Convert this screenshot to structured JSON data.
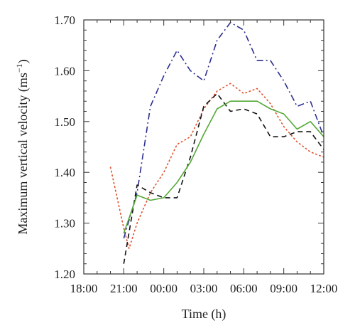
{
  "chart_data": {
    "type": "line",
    "xlabel": "Time (h)",
    "ylabel_text": "Maximum vertical velocity (ms",
    "ylabel_sup": "−1",
    "ylabel_close": ")",
    "xlim": [
      -6,
      12
    ],
    "ylim": [
      1.2,
      1.7
    ],
    "x_ticks": [
      -6,
      -3,
      0,
      3,
      6,
      9,
      12
    ],
    "x_tick_labels": [
      "18:00",
      "21:00",
      "00:00",
      "03:00",
      "06:00",
      "09:00",
      "12:00"
    ],
    "y_ticks": [
      1.2,
      1.3,
      1.4,
      1.5,
      1.6,
      1.7
    ],
    "y_tick_labels": [
      "1.20",
      "1.30",
      "1.40",
      "1.50",
      "1.60",
      "1.70"
    ],
    "grid": false,
    "series": [
      {
        "style": "dotted",
        "color": "#e0502a",
        "points": [
          [
            -4.0,
            1.41
          ],
          [
            -3.0,
            1.29
          ],
          [
            -2.6,
            1.25
          ],
          [
            -2.0,
            1.3
          ],
          [
            -1.0,
            1.36
          ],
          [
            0.0,
            1.4
          ],
          [
            1.0,
            1.455
          ],
          [
            2.0,
            1.47
          ],
          [
            3.0,
            1.525
          ],
          [
            4.0,
            1.56
          ],
          [
            5.0,
            1.575
          ],
          [
            6.0,
            1.555
          ],
          [
            7.0,
            1.565
          ],
          [
            8.0,
            1.535
          ],
          [
            9.0,
            1.49
          ],
          [
            10.0,
            1.46
          ],
          [
            11.0,
            1.44
          ],
          [
            12.0,
            1.43
          ]
        ]
      },
      {
        "style": "dash-dot",
        "color": "#2b2f8f",
        "points": [
          [
            -3.0,
            1.27
          ],
          [
            -2.0,
            1.36
          ],
          [
            -1.0,
            1.53
          ],
          [
            0.0,
            1.59
          ],
          [
            1.0,
            1.64
          ],
          [
            2.0,
            1.6
          ],
          [
            3.0,
            1.58
          ],
          [
            4.0,
            1.66
          ],
          [
            5.0,
            1.695
          ],
          [
            6.0,
            1.68
          ],
          [
            7.0,
            1.62
          ],
          [
            8.0,
            1.62
          ],
          [
            9.0,
            1.58
          ],
          [
            10.0,
            1.53
          ],
          [
            11.0,
            1.54
          ],
          [
            12.0,
            1.47
          ]
        ]
      },
      {
        "style": "dashed",
        "color": "#111111",
        "points": [
          [
            -3.0,
            1.22
          ],
          [
            -2.0,
            1.375
          ],
          [
            -1.0,
            1.36
          ],
          [
            0.0,
            1.35
          ],
          [
            1.0,
            1.35
          ],
          [
            2.0,
            1.43
          ],
          [
            3.0,
            1.53
          ],
          [
            4.0,
            1.555
          ],
          [
            5.0,
            1.52
          ],
          [
            6.0,
            1.525
          ],
          [
            7.0,
            1.515
          ],
          [
            8.0,
            1.47
          ],
          [
            9.0,
            1.47
          ],
          [
            10.0,
            1.48
          ],
          [
            11.0,
            1.48
          ],
          [
            12.0,
            1.445
          ]
        ]
      },
      {
        "style": "solid",
        "color": "#55a838",
        "points": [
          [
            -3.0,
            1.28
          ],
          [
            -2.0,
            1.355
          ],
          [
            -1.0,
            1.345
          ],
          [
            0.0,
            1.35
          ],
          [
            1.0,
            1.38
          ],
          [
            2.0,
            1.42
          ],
          [
            3.0,
            1.475
          ],
          [
            4.0,
            1.525
          ],
          [
            5.0,
            1.54
          ],
          [
            6.0,
            1.54
          ],
          [
            7.0,
            1.54
          ],
          [
            8.0,
            1.525
          ],
          [
            9.0,
            1.515
          ],
          [
            10.0,
            1.485
          ],
          [
            11.0,
            1.5
          ],
          [
            12.0,
            1.47
          ]
        ]
      }
    ]
  }
}
